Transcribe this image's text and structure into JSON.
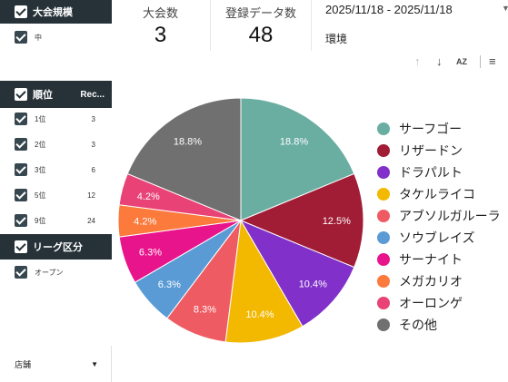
{
  "filters": {
    "tournament_scale": {
      "header": "大会規模",
      "options": [
        {
          "label": "中"
        }
      ]
    },
    "rank": {
      "header": "順位",
      "count_header": "Rec...",
      "options": [
        {
          "label": "1位",
          "count": "3"
        },
        {
          "label": "2位",
          "count": "3"
        },
        {
          "label": "3位",
          "count": "6"
        },
        {
          "label": "5位",
          "count": "12"
        },
        {
          "label": "9位",
          "count": "24"
        }
      ]
    },
    "league": {
      "header": "リーグ区分",
      "options": [
        {
          "label": "オープン"
        }
      ]
    },
    "store": {
      "label": "店舗",
      "arrow": "▼"
    }
  },
  "scorecards": [
    {
      "label": "大会数",
      "value": "3"
    },
    {
      "label": "登録データ数",
      "value": "48"
    }
  ],
  "date_range": {
    "value": "2025/11/18 - 2025/11/18",
    "arrow": "▼"
  },
  "environment_label": "環境",
  "toolbar": {
    "sort_up_icon": "↑",
    "sort_down_icon": "↓",
    "sort_az_icon": "AZ",
    "filter_icon": "≡"
  },
  "chart_data": {
    "type": "pie",
    "title": "",
    "categories": [
      "サーフゴー",
      "リザードン",
      "ドラパルト",
      "タケルライコ",
      "アブソルガルーラ",
      "ソウブレイズ",
      "サーナイト",
      "メガカリオ",
      "オーロンゲ",
      "その他"
    ],
    "values": [
      18.8,
      12.5,
      10.4,
      10.4,
      8.3,
      6.3,
      6.3,
      4.2,
      4.2,
      18.8
    ],
    "labels": [
      "18.8%",
      "12.5%",
      "10.4%",
      "10.4%",
      "8.3%",
      "6.3%",
      "6.3%",
      "4.2%",
      "4.2%",
      "18.8%"
    ],
    "colors": [
      "#6aaea2",
      "#a11d36",
      "#8130c9",
      "#f3b800",
      "#ef5b62",
      "#5b9bd5",
      "#e8148c",
      "#fb7a3c",
      "#e94276",
      "#707070"
    ],
    "legend_position": "right"
  }
}
